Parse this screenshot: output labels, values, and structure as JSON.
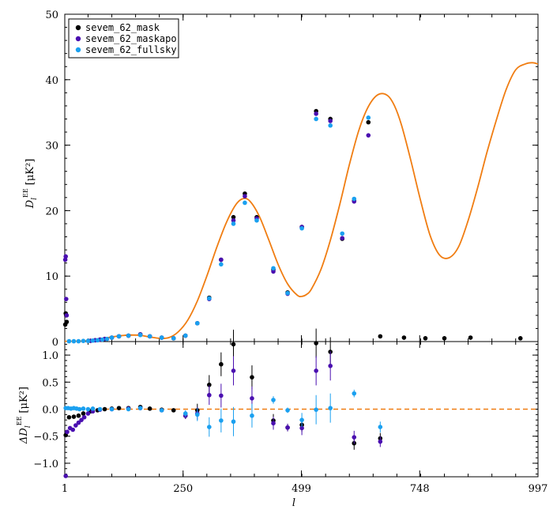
{
  "chart_data": {
    "type": "scatter",
    "xlabel": "l",
    "x_ticks": [
      1,
      250,
      499,
      748,
      997
    ],
    "xlim": [
      1,
      997
    ],
    "legend_placement": "top-left",
    "top": {
      "ylabel_main": "D",
      "ylabel_sub": "l",
      "ylabel_sup": "EE",
      "ylabel_unit": "[μK²]",
      "ylim": [
        0,
        50
      ],
      "y_ticks": [
        0,
        10,
        20,
        30,
        40,
        50
      ],
      "model_color": "#f07d12",
      "model": {
        "x": [
          1,
          20,
          40,
          60,
          80,
          100,
          120,
          140,
          160,
          180,
          200,
          220,
          240,
          260,
          280,
          300,
          320,
          340,
          360,
          375,
          390,
          410,
          430,
          450,
          470,
          490,
          500,
          510,
          520,
          540,
          560,
          580,
          600,
          620,
          640,
          660,
          680,
          695,
          710,
          730,
          750,
          770,
          790,
          810,
          830,
          850,
          870,
          890,
          910,
          930,
          950,
          970,
          985,
          997
        ],
        "y": [
          0.05,
          0.05,
          0.1,
          0.25,
          0.45,
          0.7,
          0.9,
          1.0,
          0.95,
          0.7,
          0.5,
          0.6,
          1.5,
          3.3,
          6.2,
          10.0,
          14.2,
          18.0,
          20.8,
          21.8,
          21.5,
          19.2,
          15.6,
          11.8,
          8.8,
          7.1,
          6.9,
          7.2,
          8.0,
          11.0,
          15.5,
          21.0,
          27.0,
          32.3,
          35.9,
          37.7,
          37.6,
          36.0,
          33.0,
          27.5,
          21.5,
          16.2,
          13.2,
          12.8,
          14.5,
          18.5,
          23.5,
          29.0,
          34.0,
          38.5,
          41.5,
          42.4,
          42.6,
          42.4
        ]
      },
      "series": [
        {
          "name": "sevem_62_mask",
          "color": "#000000",
          "x": [
            2,
            3,
            4,
            5,
            55,
            65,
            75,
            85,
            100,
            115,
            135,
            160,
            180,
            205,
            230,
            255,
            280,
            305,
            330,
            356,
            380,
            405,
            440,
            470,
            500,
            530,
            560,
            585,
            610,
            640,
            665,
            715,
            760,
            800,
            855,
            960
          ],
          "y": [
            2.6,
            4.3,
            4.0,
            3.0,
            0.12,
            0.2,
            0.3,
            0.4,
            0.6,
            0.8,
            0.9,
            1.1,
            0.8,
            0.6,
            0.5,
            0.9,
            2.8,
            6.7,
            12.5,
            19.0,
            22.6,
            19.0,
            11.0,
            7.5,
            17.5,
            35.2,
            34.0,
            15.7,
            21.5,
            33.5,
            0.8,
            0.6,
            0.5,
            0.5,
            0.6,
            0.5
          ]
        },
        {
          "name": "sevem_62_maskapo",
          "color": "#4a0fb0",
          "x": [
            2,
            3,
            4,
            5,
            55,
            65,
            75,
            85,
            100,
            115,
            135,
            160,
            180,
            205,
            230,
            255,
            280,
            305,
            330,
            356,
            380,
            405,
            440,
            470,
            500,
            530,
            560,
            585,
            610,
            640
          ],
          "y": [
            12.5,
            13.0,
            6.5,
            4.0,
            0.12,
            0.2,
            0.3,
            0.4,
            0.6,
            0.8,
            0.9,
            1.1,
            0.8,
            0.6,
            0.5,
            0.9,
            2.8,
            6.5,
            12.5,
            18.5,
            22.2,
            18.8,
            10.7,
            7.3,
            17.5,
            34.8,
            33.7,
            15.8,
            21.4,
            31.5
          ]
        },
        {
          "name": "sevem_62_fullsky",
          "color": "#1aa0f0",
          "x": [
            10,
            20,
            30,
            40,
            50,
            60,
            70,
            80,
            90,
            100,
            115,
            135,
            160,
            180,
            205,
            230,
            255,
            280,
            305,
            330,
            356,
            380,
            405,
            440,
            470,
            500,
            530,
            560,
            585,
            610,
            640
          ],
          "y": [
            0.05,
            0.05,
            0.05,
            0.1,
            0.1,
            0.15,
            0.2,
            0.3,
            0.4,
            0.6,
            0.8,
            0.9,
            1.0,
            0.8,
            0.6,
            0.5,
            0.9,
            2.8,
            6.6,
            11.8,
            18.0,
            21.2,
            18.5,
            11.2,
            7.4,
            17.3,
            34.0,
            33.0,
            16.5,
            21.8,
            34.2
          ]
        }
      ]
    },
    "bottom": {
      "ylabel_main": "ΔD",
      "ylabel_sub": "l",
      "ylabel_sup": "EE",
      "ylabel_unit": "[μK²]",
      "ylim": [
        -1.25,
        1.25
      ],
      "y_ticks": [
        -1.0,
        -0.5,
        0.0,
        0.5,
        1.0
      ],
      "y_tick_labels": [
        "−1.0",
        "−0.5",
        "0.0",
        "0.5",
        "1.0"
      ],
      "zero_line_color": "#f07d12",
      "series": [
        {
          "name": "sevem_62_mask",
          "color": "#000000",
          "points": [
            {
              "x": 3,
              "y": -0.48,
              "err": 0.0
            },
            {
              "x": 10,
              "y": -0.15,
              "err": 0.0
            },
            {
              "x": 20,
              "y": -0.14,
              "err": 0.0
            },
            {
              "x": 30,
              "y": -0.12,
              "err": 0.0
            },
            {
              "x": 40,
              "y": -0.08,
              "err": 0.0
            },
            {
              "x": 55,
              "y": -0.04,
              "err": 0.0
            },
            {
              "x": 70,
              "y": -0.02,
              "err": 0.0
            },
            {
              "x": 85,
              "y": 0.0,
              "err": 0.0
            },
            {
              "x": 100,
              "y": 0.01,
              "err": 0.0
            },
            {
              "x": 115,
              "y": 0.02,
              "err": 0.0
            },
            {
              "x": 135,
              "y": 0.02,
              "err": 0.0
            },
            {
              "x": 160,
              "y": 0.04,
              "err": 0.0
            },
            {
              "x": 180,
              "y": 0.01,
              "err": 0.0
            },
            {
              "x": 205,
              "y": -0.01,
              "err": 0.0
            },
            {
              "x": 230,
              "y": -0.02,
              "err": 0.0
            },
            {
              "x": 255,
              "y": -0.12,
              "err": 0.06
            },
            {
              "x": 280,
              "y": -0.02,
              "err": 0.12
            },
            {
              "x": 305,
              "y": 0.45,
              "err": 0.18
            },
            {
              "x": 330,
              "y": 0.83,
              "err": 0.22
            },
            {
              "x": 356,
              "y": 1.2,
              "err": 0.27
            },
            {
              "x": 395,
              "y": 0.59,
              "err": 0.22
            },
            {
              "x": 440,
              "y": -0.21,
              "err": 0.12
            },
            {
              "x": 470,
              "y": -0.34,
              "err": 0.07
            },
            {
              "x": 500,
              "y": -0.29,
              "err": 0.13
            },
            {
              "x": 530,
              "y": 1.22,
              "err": 0.27
            },
            {
              "x": 560,
              "y": 1.06,
              "err": 0.27
            },
            {
              "x": 610,
              "y": -0.63,
              "err": 0.12
            },
            {
              "x": 665,
              "y": -0.54,
              "err": 0.1
            }
          ]
        },
        {
          "name": "sevem_62_maskapo",
          "color": "#4a0fb0",
          "points": [
            {
              "x": 3,
              "y": -1.25,
              "err": 0.0
            },
            {
              "x": 6,
              "y": -0.42,
              "err": 0.0
            },
            {
              "x": 12,
              "y": -0.35,
              "err": 0.0
            },
            {
              "x": 18,
              "y": -0.38,
              "err": 0.0
            },
            {
              "x": 24,
              "y": -0.3,
              "err": 0.0
            },
            {
              "x": 30,
              "y": -0.25,
              "err": 0.0
            },
            {
              "x": 36,
              "y": -0.2,
              "err": 0.0
            },
            {
              "x": 42,
              "y": -0.15,
              "err": 0.0
            },
            {
              "x": 50,
              "y": -0.08,
              "err": 0.0
            },
            {
              "x": 60,
              "y": -0.04,
              "err": 0.0
            },
            {
              "x": 75,
              "y": -0.01,
              "err": 0.0
            },
            {
              "x": 100,
              "y": 0.0,
              "err": 0.0
            },
            {
              "x": 135,
              "y": 0.01,
              "err": 0.0
            },
            {
              "x": 160,
              "y": 0.02,
              "err": 0.0
            },
            {
              "x": 205,
              "y": -0.02,
              "err": 0.0
            },
            {
              "x": 255,
              "y": -0.12,
              "err": 0.06
            },
            {
              "x": 280,
              "y": -0.08,
              "err": 0.12
            },
            {
              "x": 305,
              "y": 0.26,
              "err": 0.18
            },
            {
              "x": 330,
              "y": 0.25,
              "err": 0.22
            },
            {
              "x": 356,
              "y": 0.71,
              "err": 0.27
            },
            {
              "x": 395,
              "y": 0.2,
              "err": 0.22
            },
            {
              "x": 440,
              "y": -0.26,
              "err": 0.12
            },
            {
              "x": 470,
              "y": -0.34,
              "err": 0.07
            },
            {
              "x": 500,
              "y": -0.35,
              "err": 0.13
            },
            {
              "x": 530,
              "y": 0.71,
              "err": 0.27
            },
            {
              "x": 560,
              "y": 0.8,
              "err": 0.27
            },
            {
              "x": 610,
              "y": -0.52,
              "err": 0.12
            },
            {
              "x": 665,
              "y": -0.6,
              "err": 0.1
            }
          ]
        },
        {
          "name": "sevem_62_fullsky",
          "color": "#1aa0f0",
          "points": [
            {
              "x": 3,
              "y": 0.02,
              "err": 0.0
            },
            {
              "x": 8,
              "y": 0.02,
              "err": 0.0
            },
            {
              "x": 14,
              "y": 0.01,
              "err": 0.0
            },
            {
              "x": 20,
              "y": 0.02,
              "err": 0.0
            },
            {
              "x": 26,
              "y": 0.01,
              "err": 0.0
            },
            {
              "x": 32,
              "y": 0.0,
              "err": 0.0
            },
            {
              "x": 40,
              "y": 0.01,
              "err": 0.0
            },
            {
              "x": 50,
              "y": 0.0,
              "err": 0.0
            },
            {
              "x": 60,
              "y": 0.01,
              "err": 0.0
            },
            {
              "x": 75,
              "y": 0.0,
              "err": 0.0
            },
            {
              "x": 100,
              "y": 0.0,
              "err": 0.0
            },
            {
              "x": 135,
              "y": 0.0,
              "err": 0.0
            },
            {
              "x": 160,
              "y": 0.02,
              "err": 0.0
            },
            {
              "x": 205,
              "y": -0.02,
              "err": 0.0
            },
            {
              "x": 255,
              "y": -0.08,
              "err": 0.06
            },
            {
              "x": 280,
              "y": -0.1,
              "err": 0.12
            },
            {
              "x": 305,
              "y": -0.33,
              "err": 0.18
            },
            {
              "x": 330,
              "y": -0.21,
              "err": 0.22
            },
            {
              "x": 356,
              "y": -0.23,
              "err": 0.27
            },
            {
              "x": 395,
              "y": -0.12,
              "err": 0.22
            },
            {
              "x": 440,
              "y": 0.17,
              "err": 0.07
            },
            {
              "x": 470,
              "y": -0.02,
              "err": 0.05
            },
            {
              "x": 500,
              "y": -0.2,
              "err": 0.13
            },
            {
              "x": 530,
              "y": -0.01,
              "err": 0.27
            },
            {
              "x": 560,
              "y": 0.02,
              "err": 0.27
            },
            {
              "x": 610,
              "y": 0.29,
              "err": 0.07
            },
            {
              "x": 665,
              "y": -0.33,
              "err": 0.1
            }
          ]
        }
      ]
    }
  }
}
